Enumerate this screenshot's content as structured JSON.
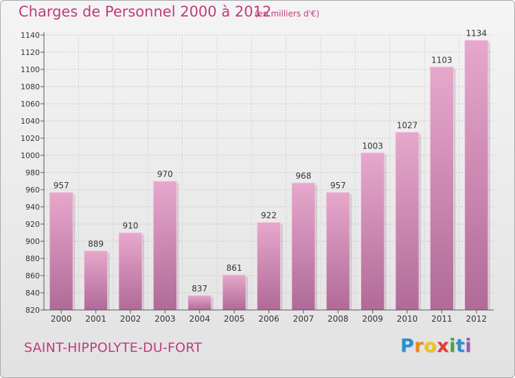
{
  "title": "Charges de Personnel 2000 à 2012",
  "subtitle": "(en milliers d'€)",
  "commune": "SAINT-HIPPOLYTE-DU-FORT",
  "logo": {
    "letters": [
      "P",
      "r",
      "o",
      "x",
      "i",
      "t",
      "i"
    ],
    "colors": [
      "#2a8fd0",
      "#e88a1a",
      "#f0c419",
      "#e23a3a",
      "#4aa63a",
      "#2a8fd0",
      "#9b59b6"
    ]
  },
  "colors": {
    "accent": "#c03a7a",
    "bar_top": "#e7a8cc",
    "bar_bottom": "#b06a98"
  },
  "chart_data": {
    "type": "bar",
    "categories": [
      "2000",
      "2001",
      "2002",
      "2003",
      "2004",
      "2005",
      "2006",
      "2007",
      "2008",
      "2009",
      "2010",
      "2011",
      "2012"
    ],
    "values": [
      957,
      889,
      910,
      970,
      837,
      861,
      922,
      968,
      957,
      1003,
      1027,
      1103,
      1134
    ],
    "ylim": [
      820,
      1140
    ],
    "yticks": [
      820,
      840,
      860,
      880,
      900,
      920,
      940,
      960,
      980,
      1000,
      1020,
      1040,
      1060,
      1080,
      1100,
      1120,
      1140
    ],
    "grid": true
  }
}
